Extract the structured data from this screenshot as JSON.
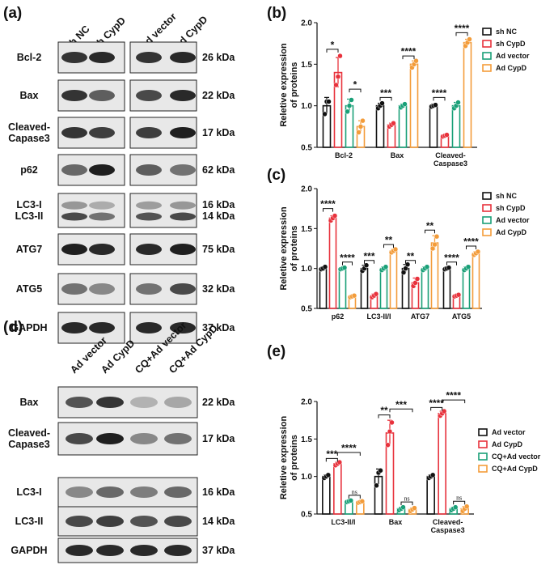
{
  "colors": {
    "series": [
      "#111111",
      "#e8323c",
      "#1aa078",
      "#f39c3a"
    ]
  },
  "panel_a": {
    "label": "(a)",
    "lanes": [
      "sh NC",
      "sh CypD",
      "Ad vector",
      "Ad CypD"
    ],
    "rows": [
      {
        "label": "Bcl-2",
        "kda": "26 kDa"
      },
      {
        "label": "Bax",
        "kda": "22 kDa"
      },
      {
        "label": "Cleaved-\nCapase3",
        "kda": "17 kDa"
      },
      {
        "label": "p62",
        "kda": "62 kDa"
      },
      {
        "label": "LC3-I\nLC3-II",
        "kda": "16 kDa\n14 kDa"
      },
      {
        "label": "ATG7",
        "kda": "75 kDa"
      },
      {
        "label": "ATG5",
        "kda": "32 kDa"
      },
      {
        "label": "GAPDH",
        "kda": "37 kDa"
      }
    ],
    "band_intensity": [
      [
        0.85,
        0.9,
        0.85,
        0.9
      ],
      [
        0.85,
        0.65,
        0.75,
        0.9
      ],
      [
        0.85,
        0.8,
        0.8,
        0.95
      ],
      [
        0.6,
        0.95,
        0.65,
        0.55
      ],
      [
        0.75,
        0.55,
        0.7,
        0.75
      ],
      [
        0.95,
        0.9,
        0.9,
        0.95
      ],
      [
        0.55,
        0.45,
        0.55,
        0.75
      ],
      [
        0.9,
        0.9,
        0.9,
        0.9
      ]
    ]
  },
  "panel_d": {
    "label": "(d)",
    "lanes": [
      "Ad vector",
      "Ad CypD",
      "CQ+Ad vector",
      "CQ+Ad CypD"
    ],
    "rows": [
      {
        "label": "Bax",
        "kda": "22 kDa"
      },
      {
        "label": "Cleaved-\nCapase3",
        "kda": "17 kDa"
      },
      {
        "label": "LC3-I",
        "kda": "16 kDa"
      },
      {
        "label": "LC3-II",
        "kda": "14 kDa"
      },
      {
        "label": "GAPDH",
        "kda": "37 kDa"
      }
    ],
    "band_intensity": [
      [
        0.7,
        0.85,
        0.25,
        0.3
      ],
      [
        0.75,
        0.95,
        0.45,
        0.55
      ],
      [
        0.45,
        0.6,
        0.5,
        0.6
      ],
      [
        0.75,
        0.8,
        0.7,
        0.75
      ],
      [
        0.9,
        0.9,
        0.9,
        0.9
      ]
    ]
  },
  "chart_data": [
    {
      "panel": "(b)",
      "type": "bar",
      "ylabel": "Reletive expression\nof proteins",
      "ylim": [
        0.5,
        2.0
      ],
      "yticks": [
        "0.5",
        "1.0",
        "1.5",
        "2.0"
      ],
      "categories": [
        "Bcl-2",
        "Bax",
        "Cleaved-\nCaspase3"
      ],
      "series": [
        {
          "name": "sh NC",
          "values": [
            1.0,
            1.0,
            1.0
          ],
          "err": [
            0.1,
            0.03,
            0.02
          ],
          "points": [
            [
              0.9,
              1.05,
              1.05
            ],
            [
              0.97,
              1.0,
              1.03
            ],
            [
              0.99,
              1.0,
              1.01
            ]
          ]
        },
        {
          "name": "sh CypD",
          "values": [
            1.4,
            0.77,
            0.64
          ],
          "err": [
            0.18,
            0.02,
            0.01
          ],
          "points": [
            [
              1.25,
              1.35,
              1.6
            ],
            [
              0.75,
              0.77,
              0.79
            ],
            [
              0.63,
              0.64,
              0.65
            ]
          ]
        },
        {
          "name": "Ad vector",
          "values": [
            1.0,
            1.0,
            1.0
          ],
          "err": [
            0.08,
            0.02,
            0.04
          ],
          "points": [
            [
              0.93,
              1.0,
              1.07
            ],
            [
              0.98,
              1.0,
              1.02
            ],
            [
              0.97,
              1.0,
              1.04
            ]
          ]
        },
        {
          "name": "Ad CypD",
          "values": [
            0.75,
            1.5,
            1.76
          ],
          "err": [
            0.07,
            0.04,
            0.04
          ],
          "points": [
            [
              0.68,
              0.75,
              0.82
            ],
            [
              1.46,
              1.5,
              1.54
            ],
            [
              1.72,
              1.76,
              1.8
            ]
          ]
        }
      ],
      "significance": [
        {
          "category": 0,
          "pair": [
            0,
            1
          ],
          "label": "*",
          "y": 1.68
        },
        {
          "category": 0,
          "pair": [
            2,
            3
          ],
          "label": "*",
          "y": 1.2
        },
        {
          "category": 1,
          "pair": [
            0,
            1
          ],
          "label": "***",
          "y": 1.1
        },
        {
          "category": 1,
          "pair": [
            2,
            3
          ],
          "label": "****",
          "y": 1.6
        },
        {
          "category": 2,
          "pair": [
            0,
            1
          ],
          "label": "****",
          "y": 1.1
        },
        {
          "category": 2,
          "pair": [
            2,
            3
          ],
          "label": "****",
          "y": 1.88
        }
      ]
    },
    {
      "panel": "(c)",
      "type": "bar",
      "ylabel": "Reletive expression\nof proteins",
      "ylim": [
        0.5,
        2.0
      ],
      "yticks": [
        "0.5",
        "1.0",
        "1.5",
        "2.0"
      ],
      "categories": [
        "p62",
        "LC3-II/I",
        "ATG7",
        "ATG5"
      ],
      "series": [
        {
          "name": "sh NC",
          "values": [
            1.0,
            1.0,
            1.0,
            1.0
          ],
          "err": [
            0.02,
            0.04,
            0.05,
            0.02
          ],
          "points": [
            [
              0.99,
              1.0,
              1.02
            ],
            [
              0.97,
              1.0,
              1.04
            ],
            [
              0.95,
              1.0,
              1.05
            ],
            [
              0.99,
              1.0,
              1.01
            ]
          ]
        },
        {
          "name": "sh CypD",
          "values": [
            1.63,
            0.66,
            0.82,
            0.66
          ],
          "err": [
            0.03,
            0.02,
            0.06,
            0.01
          ],
          "points": [
            [
              1.6,
              1.63,
              1.66
            ],
            [
              0.64,
              0.66,
              0.68
            ],
            [
              0.78,
              0.82,
              0.87
            ],
            [
              0.65,
              0.66,
              0.67
            ]
          ]
        },
        {
          "name": "Ad vector",
          "values": [
            1.0,
            1.0,
            1.0,
            1.0
          ],
          "err": [
            0.01,
            0.02,
            0.02,
            0.02
          ],
          "points": [
            [
              0.99,
              1.0,
              1.01
            ],
            [
              0.98,
              1.0,
              1.02
            ],
            [
              0.98,
              1.0,
              1.02
            ],
            [
              0.98,
              1.0,
              1.02
            ]
          ]
        },
        {
          "name": "Ad CypD",
          "values": [
            0.65,
            1.22,
            1.32,
            1.19
          ],
          "err": [
            0.01,
            0.02,
            0.09,
            0.02
          ],
          "points": [
            [
              0.64,
              0.65,
              0.66
            ],
            [
              1.2,
              1.22,
              1.24
            ],
            [
              1.25,
              1.3,
              1.4
            ],
            [
              1.17,
              1.19,
              1.21
            ]
          ]
        }
      ],
      "significance": [
        {
          "category": 0,
          "pair": [
            0,
            1
          ],
          "label": "****",
          "y": 1.75
        },
        {
          "category": 0,
          "pair": [
            2,
            3
          ],
          "label": "****",
          "y": 1.08
        },
        {
          "category": 1,
          "pair": [
            0,
            1
          ],
          "label": "***",
          "y": 1.1
        },
        {
          "category": 1,
          "pair": [
            2,
            3
          ],
          "label": "**",
          "y": 1.3
        },
        {
          "category": 2,
          "pair": [
            0,
            1
          ],
          "label": "**",
          "y": 1.1
        },
        {
          "category": 2,
          "pair": [
            2,
            3
          ],
          "label": "**",
          "y": 1.48
        },
        {
          "category": 3,
          "pair": [
            0,
            1
          ],
          "label": "****",
          "y": 1.08
        },
        {
          "category": 3,
          "pair": [
            2,
            3
          ],
          "label": "****",
          "y": 1.28
        }
      ]
    },
    {
      "panel": "(e)",
      "type": "bar",
      "ylabel": "Reletive expression\nof proteins",
      "ylim": [
        0.5,
        2.0
      ],
      "yticks": [
        "0.5",
        "1.0",
        "1.5",
        "2.0"
      ],
      "categories": [
        "LC3-II/I",
        "Bax",
        "Cleaved-\nCaspase3"
      ],
      "series": [
        {
          "name": "Ad vector",
          "values": [
            1.0,
            1.0,
            1.0
          ],
          "err": [
            0.02,
            0.1,
            0.02
          ],
          "points": [
            [
              0.98,
              1.0,
              1.02
            ],
            [
              0.88,
              1.05,
              1.08
            ],
            [
              0.98,
              1.0,
              1.02
            ]
          ]
        },
        {
          "name": "Ad CypD",
          "values": [
            1.17,
            1.58,
            1.84
          ],
          "err": [
            0.02,
            0.17,
            0.03
          ],
          "points": [
            [
              1.15,
              1.17,
              1.19
            ],
            [
              1.42,
              1.6,
              1.72
            ],
            [
              1.81,
              1.84,
              1.87
            ]
          ]
        },
        {
          "name": "CQ+Ad vector",
          "values": [
            0.67,
            0.57,
            0.57
          ],
          "err": [
            0.01,
            0.02,
            0.02
          ],
          "points": [
            [
              0.66,
              0.67,
              0.68
            ],
            [
              0.55,
              0.57,
              0.59
            ],
            [
              0.55,
              0.57,
              0.59
            ]
          ]
        },
        {
          "name": "CQ+Ad CypD",
          "values": [
            0.66,
            0.56,
            0.57
          ],
          "err": [
            0.01,
            0.02,
            0.03
          ],
          "points": [
            [
              0.65,
              0.66,
              0.67
            ],
            [
              0.54,
              0.56,
              0.58
            ],
            [
              0.54,
              0.57,
              0.6
            ]
          ]
        }
      ],
      "significance": [
        {
          "category": 0,
          "pair": [
            0,
            1
          ],
          "label": "***",
          "y": 1.24
        },
        {
          "category": 0,
          "pair": [
            1,
            3
          ],
          "label": "****",
          "y": 1.32
        },
        {
          "category": 0,
          "pair": [
            2,
            3
          ],
          "label": "ns",
          "y": 0.75
        },
        {
          "category": 1,
          "pair": [
            0,
            1
          ],
          "label": "**",
          "y": 1.82
        },
        {
          "category": 1,
          "pair": [
            1,
            3
          ],
          "label": "***",
          "y": 1.9
        },
        {
          "category": 1,
          "pair": [
            2,
            3
          ],
          "label": "ns",
          "y": 0.66
        },
        {
          "category": 2,
          "pair": [
            0,
            1
          ],
          "label": "****",
          "y": 1.92
        },
        {
          "category": 2,
          "pair": [
            1,
            3
          ],
          "label": "****",
          "y": 2.02
        },
        {
          "category": 2,
          "pair": [
            2,
            3
          ],
          "label": "ns",
          "y": 0.67
        }
      ]
    }
  ]
}
